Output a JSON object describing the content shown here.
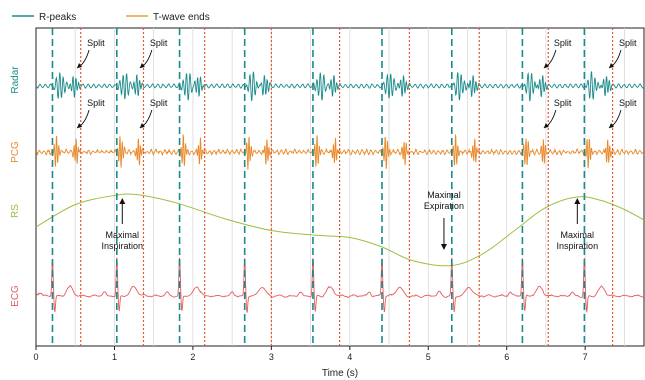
{
  "legend": {
    "items": [
      {
        "label": "R-peaks",
        "color": "#1a8a8a",
        "style": "solid"
      },
      {
        "label": "T-wave ends",
        "color": "#e3a23a",
        "style": "solid"
      }
    ]
  },
  "chart_data": {
    "type": "line",
    "title": "",
    "xlabel": "Time (s)",
    "ylabel": "",
    "xlim": [
      0,
      7.75
    ],
    "xticks": [
      "0",
      "1",
      "2",
      "3",
      "4",
      "5",
      "6",
      "7"
    ],
    "grid": "vertical light gray lines every 0.5 s",
    "legend_position": "top-left",
    "channels": [
      {
        "name": "Radar",
        "color": "#1a8a8a"
      },
      {
        "name": "PCG",
        "color": "#e88a2a"
      },
      {
        "name": "RS",
        "color": "#9ac040"
      },
      {
        "name": "ECG",
        "color": "#e85a5a"
      }
    ],
    "r_peaks_s": [
      0.21,
      1.03,
      1.83,
      2.66,
      3.53,
      4.41,
      5.3,
      6.2,
      6.99
    ],
    "t_wave_ends_s": [
      0.57,
      1.37,
      2.15,
      3.0,
      3.87,
      4.76,
      5.65,
      6.53,
      7.35
    ],
    "rs_curve": {
      "x": [
        0,
        0.5,
        1.0,
        1.3,
        1.8,
        2.4,
        3.0,
        3.6,
        4.0,
        4.4,
        4.8,
        5.3,
        5.7,
        6.1,
        6.5,
        6.9,
        7.2,
        7.5,
        7.75
      ],
      "y": [
        0.5,
        0.82,
        0.95,
        0.96,
        0.84,
        0.62,
        0.45,
        0.38,
        0.35,
        0.22,
        0.02,
        -0.05,
        0.12,
        0.45,
        0.78,
        0.93,
        0.88,
        0.75,
        0.6
      ]
    },
    "annotations": [
      {
        "text": "Split",
        "channel": "Radar",
        "x": 0.6
      },
      {
        "text": "Split",
        "channel": "Radar",
        "x": 1.4
      },
      {
        "text": "Split",
        "channel": "Radar",
        "x": 6.55
      },
      {
        "text": "Split",
        "channel": "Radar",
        "x": 7.38
      },
      {
        "text": "Split",
        "channel": "PCG",
        "x": 0.6
      },
      {
        "text": "Split",
        "channel": "PCG",
        "x": 1.4
      },
      {
        "text": "Split",
        "channel": "PCG",
        "x": 6.55
      },
      {
        "text": "Split",
        "channel": "PCG",
        "x": 7.38
      },
      {
        "text": "Maximal Inspiration",
        "channel": "RS",
        "x": 1.1,
        "arrow": "up"
      },
      {
        "text": "Maximal Expiration",
        "channel": "RS",
        "x": 5.2,
        "arrow": "down"
      },
      {
        "text": "Maximal Inspiration",
        "channel": "RS",
        "x": 6.9,
        "arrow": "up"
      }
    ]
  }
}
